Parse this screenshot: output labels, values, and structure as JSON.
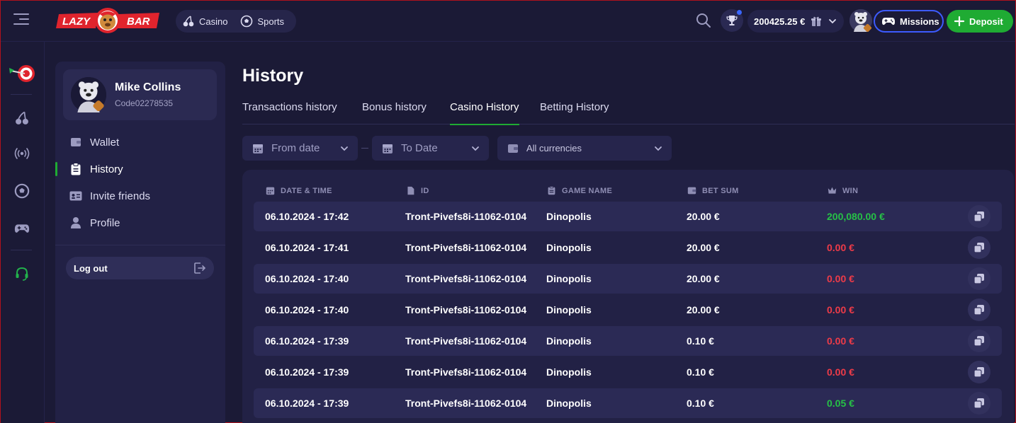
{
  "header": {
    "nav": [
      {
        "label": "Casino",
        "icon": "cherries-icon"
      },
      {
        "label": "Sports",
        "icon": "soccer-ball-icon"
      }
    ],
    "balance": "200425.25 €",
    "missions_label": "Missions",
    "deposit_label": "Deposit",
    "logo_text_left": "LAZY",
    "logo_text_right": "BAR"
  },
  "rail": {
    "icons": [
      "dart-target-icon",
      "cherries-icon",
      "live-broadcast-icon",
      "soccer-ball-icon",
      "gamepad-icon",
      "headset-support-icon"
    ]
  },
  "profile": {
    "name": "Mike Collins",
    "code": "Code02278535",
    "menu": [
      {
        "label": "Wallet",
        "icon": "wallet-icon"
      },
      {
        "label": "History",
        "icon": "clipboard-icon",
        "active": true
      },
      {
        "label": "Invite friends",
        "icon": "id-card-icon"
      },
      {
        "label": "Profile",
        "icon": "user-icon"
      }
    ],
    "logout_label": "Log out"
  },
  "page": {
    "title": "History",
    "tabs": [
      {
        "label": "Transactions history"
      },
      {
        "label": "Bonus history"
      },
      {
        "label": "Casino History",
        "active": true
      },
      {
        "label": "Betting History"
      }
    ],
    "filters": {
      "from_date": "From date",
      "to_date": "To Date",
      "currency": "All currencies"
    }
  },
  "table": {
    "headers": [
      "DATE & TIME",
      "ID",
      "GAME NAME",
      "BET SUM",
      "WIN"
    ],
    "rows": [
      {
        "datetime": "06.10.2024 - 17:42",
        "id": "Tront-Pivefs8i-11062-0104",
        "game": "Dinopolis",
        "bet": "20.00 €",
        "win": "200,080.00 €",
        "win_status": "green"
      },
      {
        "datetime": "06.10.2024 - 17:41",
        "id": "Tront-Pivefs8i-11062-0104",
        "game": "Dinopolis",
        "bet": "20.00 €",
        "win": "0.00 €",
        "win_status": "red"
      },
      {
        "datetime": "06.10.2024 - 17:40",
        "id": "Tront-Pivefs8i-11062-0104",
        "game": "Dinopolis",
        "bet": "20.00 €",
        "win": "0.00 €",
        "win_status": "red"
      },
      {
        "datetime": "06.10.2024 - 17:40",
        "id": "Tront-Pivefs8i-11062-0104",
        "game": "Dinopolis",
        "bet": "20.00 €",
        "win": "0.00 €",
        "win_status": "red"
      },
      {
        "datetime": "06.10.2024 - 17:39",
        "id": "Tront-Pivefs8i-11062-0104",
        "game": "Dinopolis",
        "bet": "0.10 €",
        "win": "0.00 €",
        "win_status": "red"
      },
      {
        "datetime": "06.10.2024 - 17:39",
        "id": "Tront-Pivefs8i-11062-0104",
        "game": "Dinopolis",
        "bet": "0.10 €",
        "win": "0.00 €",
        "win_status": "red"
      },
      {
        "datetime": "06.10.2024 - 17:39",
        "id": "Tront-Pivefs8i-11062-0104",
        "game": "Dinopolis",
        "bet": "0.10 €",
        "win": "0.05 €",
        "win_status": "green"
      }
    ]
  },
  "colors": {
    "background": "#1b1a36",
    "panel": "#222145",
    "accent_green": "#1fab33",
    "win_green": "#26c146",
    "loss_red": "#ee3b48",
    "missions_border": "#3d5bff"
  }
}
